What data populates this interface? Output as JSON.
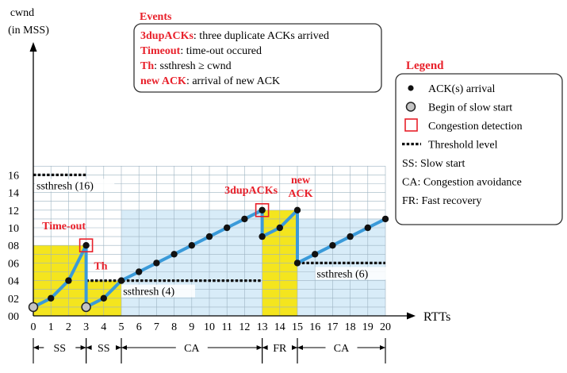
{
  "chart_data": {
    "type": "line",
    "ylabel_line1": "cwnd",
    "ylabel_line2": "(in MSS)",
    "xlabel": "RTTs",
    "x_ticks": [
      "0",
      "1",
      "2",
      "3",
      "4",
      "5",
      "6",
      "7",
      "8",
      "9",
      "10",
      "11",
      "12",
      "13",
      "14",
      "15",
      "16",
      "17",
      "18",
      "19",
      "20"
    ],
    "y_ticks": [
      {
        "v": 0,
        "label": "00"
      },
      {
        "v": 2,
        "label": "02"
      },
      {
        "v": 4,
        "label": "04"
      },
      {
        "v": 6,
        "label": "06"
      },
      {
        "v": 8,
        "label": "08"
      },
      {
        "v": 10,
        "label": "10"
      },
      {
        "v": 12,
        "label": "12"
      },
      {
        "v": 14,
        "label": "14"
      },
      {
        "v": 16,
        "label": "16"
      }
    ],
    "xlim": [
      0,
      20
    ],
    "ylim": [
      0,
      17
    ],
    "grid": true,
    "series": [
      {
        "points": [
          [
            0,
            1
          ],
          [
            1,
            2
          ],
          [
            2,
            4
          ],
          [
            3,
            8
          ],
          [
            3,
            1
          ],
          [
            4,
            2
          ],
          [
            5,
            4
          ],
          [
            6,
            5
          ],
          [
            7,
            6
          ],
          [
            8,
            7
          ],
          [
            9,
            8
          ],
          [
            10,
            9
          ],
          [
            11,
            10
          ],
          [
            12,
            11
          ],
          [
            13,
            12
          ],
          [
            13,
            9
          ],
          [
            14,
            10
          ],
          [
            15,
            12
          ],
          [
            15,
            6
          ],
          [
            16,
            7
          ],
          [
            17,
            8
          ],
          [
            18,
            9
          ],
          [
            19,
            10
          ],
          [
            20,
            11
          ]
        ]
      }
    ],
    "slow_start_points": [
      [
        0,
        1
      ],
      [
        3,
        1
      ]
    ],
    "congestion_points": [
      [
        3,
        8
      ],
      [
        13,
        12
      ]
    ],
    "regions": [
      {
        "x0": 0,
        "x1": 3,
        "y1": 8,
        "color": "#f4e51e"
      },
      {
        "x0": 3,
        "x1": 5,
        "y1": 4,
        "color": "#f4e51e"
      },
      {
        "x0": 5,
        "x1": 13,
        "y1": 12,
        "color": "#d8ecf8"
      },
      {
        "x0": 13,
        "x1": 15,
        "y1": 12,
        "color": "#f4e51e"
      },
      {
        "x0": 15,
        "x1": 20,
        "y1": 11,
        "color": "#d8ecf8"
      }
    ],
    "thresholds": [
      {
        "x0": 0,
        "x1": 3,
        "y": 16,
        "label": "ssthresh (16)"
      },
      {
        "x0": 3,
        "x1": 13,
        "y": 4,
        "label": "ssthresh (4)"
      },
      {
        "x0": 15,
        "x1": 20,
        "y": 6,
        "label": "ssthresh (6)"
      }
    ],
    "annotations": [
      {
        "x": 3,
        "y": 8,
        "text": "Time-out"
      },
      {
        "x": 5,
        "y": 4,
        "text": "Th"
      },
      {
        "x": 13,
        "y": 12,
        "text": "3dupACKs"
      },
      {
        "x": 15,
        "y": 12,
        "text": "new",
        "text2": "ACK"
      }
    ],
    "phases": [
      {
        "x0": 0,
        "x1": 3,
        "label": "SS"
      },
      {
        "x0": 3,
        "x1": 5,
        "label": "SS"
      },
      {
        "x0": 5,
        "x1": 13,
        "label": "CA"
      },
      {
        "x0": 13,
        "x1": 15,
        "label": "FR"
      },
      {
        "x0": 15,
        "x1": 20,
        "label": "CA"
      }
    ],
    "events": {
      "title": "Events",
      "items": [
        {
          "key": "3dupACKs",
          "desc": ": three duplicate ACKs arrived"
        },
        {
          "key": "Timeout",
          "desc": ": time-out occured"
        },
        {
          "key": "Th",
          "desc": ": ssthresh ≥ cwnd"
        },
        {
          "key": "new ACK",
          "desc": ": arrival of new ACK"
        }
      ]
    },
    "legend": {
      "title": "Legend",
      "items": [
        {
          "marker": "dot",
          "label": "ACK(s) arrival"
        },
        {
          "marker": "gray-circle",
          "label": "Begin of slow start"
        },
        {
          "marker": "red-square",
          "label": "Congestion detection"
        },
        {
          "marker": "dashed",
          "label": "Threshold level"
        },
        {
          "marker": "none",
          "label": "SS: Slow start"
        },
        {
          "marker": "none",
          "label": "CA: Congestion avoidance"
        },
        {
          "marker": "none",
          "label": "FR: Fast recovery"
        }
      ]
    },
    "colors": {
      "line": "#3a9ad9",
      "annotation": "#e8202a",
      "slow_start_fill": "#f4e51e",
      "avoidance_fill": "#d8ecf8",
      "grid": "#9db3c2"
    }
  }
}
